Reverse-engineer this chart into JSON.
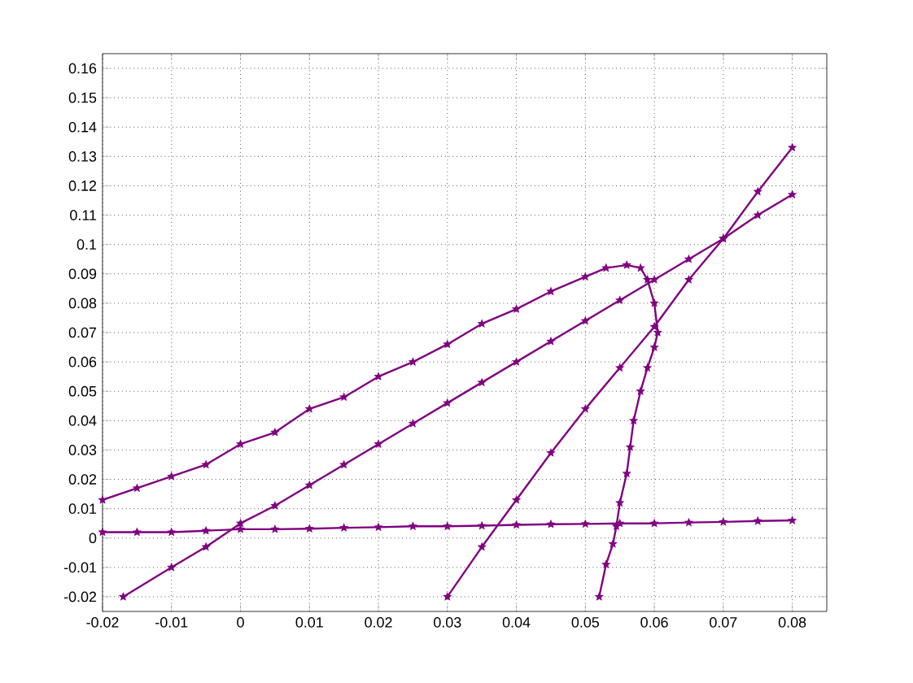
{
  "chart_data": {
    "type": "line",
    "marker": "star",
    "line_style": "solid",
    "grid": true,
    "xlim": [
      -0.02,
      0.085
    ],
    "ylim": [
      -0.025,
      0.165
    ],
    "xticks": [
      -0.02,
      -0.01,
      0,
      0.01,
      0.02,
      0.03,
      0.04,
      0.05,
      0.06,
      0.07,
      0.08
    ],
    "yticks": [
      -0.02,
      -0.01,
      0,
      0.01,
      0.02,
      0.03,
      0.04,
      0.05,
      0.06,
      0.07,
      0.08,
      0.09,
      0.1,
      0.11,
      0.12,
      0.13,
      0.14,
      0.15,
      0.16
    ],
    "series": [
      {
        "color": "#800080",
        "x": [
          -0.02,
          -0.015,
          -0.01,
          -0.005,
          0,
          0.005,
          0.01,
          0.015,
          0.02,
          0.025,
          0.03,
          0.035,
          0.04,
          0.045,
          0.05,
          0.055,
          0.06,
          0.065,
          0.07,
          0.075,
          0.08
        ],
        "values": [
          0.002,
          0.002,
          0.002,
          0.0025,
          0.003,
          0.003,
          0.0032,
          0.0035,
          0.0037,
          0.004,
          0.004,
          0.0042,
          0.0045,
          0.0047,
          0.0048,
          0.005,
          0.005,
          0.0053,
          0.0055,
          0.0058,
          0.006
        ]
      },
      {
        "color": "#800080",
        "x": [
          -0.017,
          -0.01,
          -0.005,
          0,
          0.005,
          0.01,
          0.015,
          0.02,
          0.025,
          0.03,
          0.035,
          0.04,
          0.045,
          0.05,
          0.055,
          0.06,
          0.065,
          0.07,
          0.075,
          0.08
        ],
        "values": [
          -0.02,
          -0.01,
          -0.003,
          0.005,
          0.011,
          0.018,
          0.025,
          0.032,
          0.039,
          0.046,
          0.053,
          0.06,
          0.067,
          0.074,
          0.081,
          0.088,
          0.095,
          0.102,
          0.11,
          0.117
        ]
      },
      {
        "color": "#800080",
        "x": [
          -0.02,
          -0.015,
          -0.01,
          -0.005,
          0,
          0.005,
          0.01,
          0.015,
          0.02,
          0.025,
          0.03,
          0.035,
          0.04,
          0.045,
          0.05,
          0.053,
          0.056,
          0.058,
          0.059,
          0.06,
          0.0605,
          0.06,
          0.059,
          0.058,
          0.057,
          0.0565,
          0.056,
          0.055,
          0.0545,
          0.054,
          0.053,
          0.052
        ],
        "values": [
          0.013,
          0.017,
          0.021,
          0.025,
          0.032,
          0.036,
          0.044,
          0.048,
          0.055,
          0.06,
          0.066,
          0.073,
          0.078,
          0.084,
          0.089,
          0.092,
          0.093,
          0.092,
          0.088,
          0.08,
          0.07,
          0.065,
          0.058,
          0.05,
          0.04,
          0.031,
          0.022,
          0.012,
          0.004,
          -0.002,
          -0.009,
          -0.02
        ]
      },
      {
        "color": "#800080",
        "x": [
          0.03,
          0.035,
          0.04,
          0.045,
          0.05,
          0.055,
          0.06,
          0.065,
          0.07,
          0.075,
          0.08
        ],
        "values": [
          -0.02,
          -0.003,
          0.013,
          0.029,
          0.044,
          0.058,
          0.072,
          0.088,
          0.102,
          0.118,
          0.133
        ]
      }
    ]
  }
}
